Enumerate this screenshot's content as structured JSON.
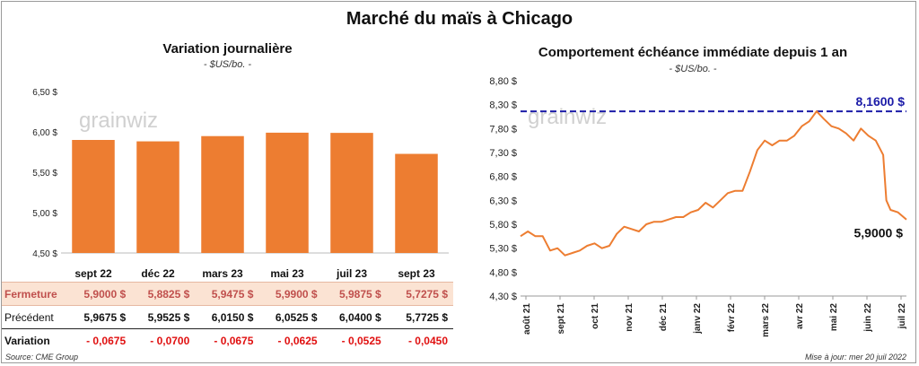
{
  "title": "Marché du maïs à Chicago",
  "footer": {
    "source": "Source: CME Group",
    "updated": "Mise à jour: mer 20 juil 2022"
  },
  "watermark": "grainwiz",
  "chart_data": [
    {
      "type": "bar",
      "title": "Variation journalière",
      "subtitle": "- $US/bo. -",
      "categories": [
        "sept 22",
        "déc 22",
        "mars 23",
        "mai 23",
        "juil 23",
        "sept 23"
      ],
      "values": [
        5.9,
        5.8825,
        5.9475,
        5.99,
        5.9875,
        5.7275
      ],
      "ylim": [
        4.5,
        6.5
      ],
      "yticks": [
        "4,50 $",
        "5,00 $",
        "5,50 $",
        "6,00 $",
        "6,50 $"
      ],
      "color": "#ed7d31",
      "table": {
        "rows": [
          {
            "label": "Fermeture",
            "values": [
              "5,9000  $",
              "5,8825  $",
              "5,9475  $",
              "5,9900  $",
              "5,9875  $",
              "5,7275  $"
            ]
          },
          {
            "label": "Précédent",
            "values": [
              "5,9675  $",
              "5,9525  $",
              "6,0150  $",
              "6,0525  $",
              "6,0400  $",
              "5,7725  $"
            ]
          },
          {
            "label": "Variation",
            "values": [
              "- 0,0675",
              "- 0,0700",
              "- 0,0675",
              "- 0,0625",
              "- 0,0525",
              "- 0,0450"
            ]
          }
        ]
      }
    },
    {
      "type": "line",
      "title": "Comportement  échéance immédiate  depuis 1 an",
      "subtitle": "- $US/bo. -",
      "ylim": [
        4.3,
        8.8
      ],
      "yticks": [
        "4,30 $",
        "4,80 $",
        "5,30 $",
        "5,80 $",
        "6,30 $",
        "6,80 $",
        "7,30 $",
        "7,80 $",
        "8,30 $",
        "8,80 $"
      ],
      "xticks": [
        "août 21",
        "sept 21",
        "oct 21",
        "nov 21",
        "déc 21",
        "janv 22",
        "févr 22",
        "mars 22",
        "avr 22",
        "mai 22",
        "juin 22",
        "juil 22"
      ],
      "xrange": [
        "2021-07-20",
        "2022-07-20"
      ],
      "color": "#ed7d31",
      "reference_line": {
        "value": 8.16,
        "label": "8,1600 $",
        "color": "#1c1ca8"
      },
      "last_label": "5,9000 $",
      "x": [
        "2021-07-20",
        "2021-07-27",
        "2021-08-03",
        "2021-08-10",
        "2021-08-17",
        "2021-08-24",
        "2021-08-31",
        "2021-09-07",
        "2021-09-14",
        "2021-09-21",
        "2021-09-28",
        "2021-10-05",
        "2021-10-12",
        "2021-10-19",
        "2021-10-26",
        "2021-11-02",
        "2021-11-09",
        "2021-11-16",
        "2021-11-23",
        "2021-11-30",
        "2021-12-07",
        "2021-12-14",
        "2021-12-21",
        "2021-12-28",
        "2022-01-04",
        "2022-01-11",
        "2022-01-18",
        "2022-01-25",
        "2022-02-01",
        "2022-02-08",
        "2022-02-15",
        "2022-02-22",
        "2022-03-01",
        "2022-03-08",
        "2022-03-15",
        "2022-03-22",
        "2022-03-29",
        "2022-04-05",
        "2022-04-12",
        "2022-04-19",
        "2022-04-26",
        "2022-05-03",
        "2022-05-10",
        "2022-05-17",
        "2022-05-24",
        "2022-05-31",
        "2022-06-07",
        "2022-06-14",
        "2022-06-21",
        "2022-06-28",
        "2022-07-01",
        "2022-07-05",
        "2022-07-12",
        "2022-07-20"
      ],
      "y": [
        5.55,
        5.65,
        5.55,
        5.55,
        5.25,
        5.3,
        5.15,
        5.2,
        5.25,
        5.35,
        5.4,
        5.3,
        5.35,
        5.6,
        5.75,
        5.7,
        5.65,
        5.8,
        5.85,
        5.85,
        5.9,
        5.95,
        5.95,
        6.05,
        6.1,
        6.25,
        6.15,
        6.3,
        6.45,
        6.5,
        6.5,
        6.9,
        7.35,
        7.55,
        7.45,
        7.55,
        7.55,
        7.65,
        7.85,
        7.95,
        8.16,
        8.0,
        7.85,
        7.8,
        7.7,
        7.55,
        7.8,
        7.65,
        7.55,
        7.25,
        6.3,
        6.1,
        6.05,
        5.9
      ]
    }
  ]
}
